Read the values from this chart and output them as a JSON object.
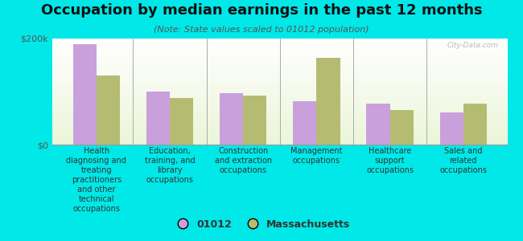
{
  "title": "Occupation by median earnings in the past 12 months",
  "subtitle": "(Note: State values scaled to 01012 population)",
  "background_color": "#00e8e8",
  "categories": [
    "Health\ndiagnosing and\ntreating\npractitioners\nand other\ntechnical\noccupations",
    "Education,\ntraining, and\nlibrary\noccupations",
    "Construction\nand extraction\noccupations",
    "Management\noccupations",
    "Healthcare\nsupport\noccupations",
    "Sales and\nrelated\noccupations"
  ],
  "values_01012": [
    190000,
    100000,
    97000,
    82000,
    78000,
    60000
  ],
  "values_mass": [
    130000,
    88000,
    93000,
    163000,
    65000,
    77000
  ],
  "color_01012": "#c9a0dc",
  "color_mass": "#b5bc72",
  "ylim": [
    0,
    200000
  ],
  "yticks": [
    0,
    200000
  ],
  "ytick_labels": [
    "$0",
    "$200k"
  ],
  "legend_label_01012": "01012",
  "legend_label_mass": "Massachusetts",
  "watermark": "City-Data.com",
  "title_fontsize": 13,
  "subtitle_fontsize": 8,
  "tick_label_fontsize": 7,
  "legend_fontsize": 9
}
